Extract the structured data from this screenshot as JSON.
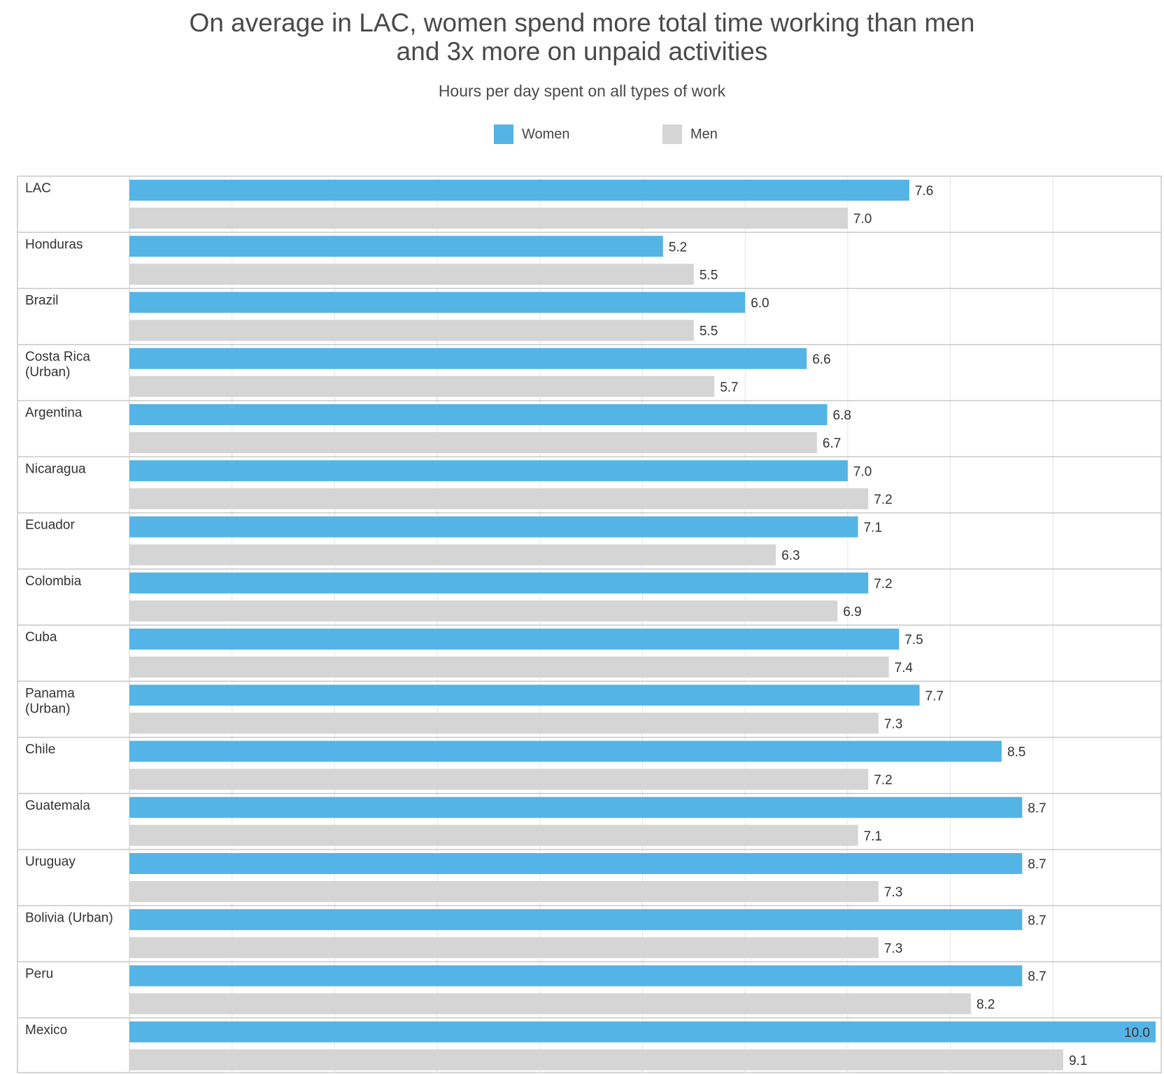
{
  "chart_data": {
    "type": "bar",
    "orientation": "horizontal",
    "title_lines": [
      "On average in LAC, women spend more total time working than men",
      "and 3x more on unpaid activities"
    ],
    "subtitle": "Hours per day spent on all types of work",
    "xlim": [
      0,
      10
    ],
    "grid": true,
    "legend_position": "top-center",
    "categories": [
      [
        "LAC"
      ],
      [
        "Honduras"
      ],
      [
        "Brazil"
      ],
      [
        "Costa Rica",
        "(Urban)"
      ],
      [
        "Argentina"
      ],
      [
        "Nicaragua"
      ],
      [
        "Ecuador"
      ],
      [
        "Colombia"
      ],
      [
        "Cuba"
      ],
      [
        "Panama",
        "(Urban)"
      ],
      [
        "Chile"
      ],
      [
        "Guatemala"
      ],
      [
        "Uruguay"
      ],
      [
        "Bolivia (Urban)"
      ],
      [
        "Peru"
      ],
      [
        "Mexico"
      ]
    ],
    "series": [
      {
        "name": "Women",
        "color": "#55b4e6",
        "values": [
          7.6,
          5.2,
          6.0,
          6.6,
          6.8,
          7.0,
          7.1,
          7.2,
          7.5,
          7.7,
          8.5,
          8.7,
          8.7,
          8.7,
          8.7,
          10.0
        ],
        "labels": [
          "7.6",
          "5.2",
          "6.0",
          "6.6",
          "6.8",
          "7.0",
          "7.1",
          "7.2",
          "7.5",
          "7.7",
          "8.5",
          "8.7",
          "8.7",
          "8.7",
          "8.7",
          "10.0"
        ]
      },
      {
        "name": "Men",
        "color": "#d5d5d5",
        "values": [
          7.0,
          5.5,
          5.5,
          5.7,
          6.7,
          7.2,
          6.3,
          6.9,
          7.4,
          7.3,
          7.2,
          7.1,
          7.3,
          7.3,
          8.2,
          9.1
        ],
        "labels": [
          "7.0",
          "5.5",
          "5.5",
          "5.7",
          "6.7",
          "7.2",
          "6.3",
          "6.9",
          "7.4",
          "7.3",
          "7.2",
          "7.1",
          "7.3",
          "7.3",
          "8.2",
          "9.1"
        ]
      }
    ]
  }
}
